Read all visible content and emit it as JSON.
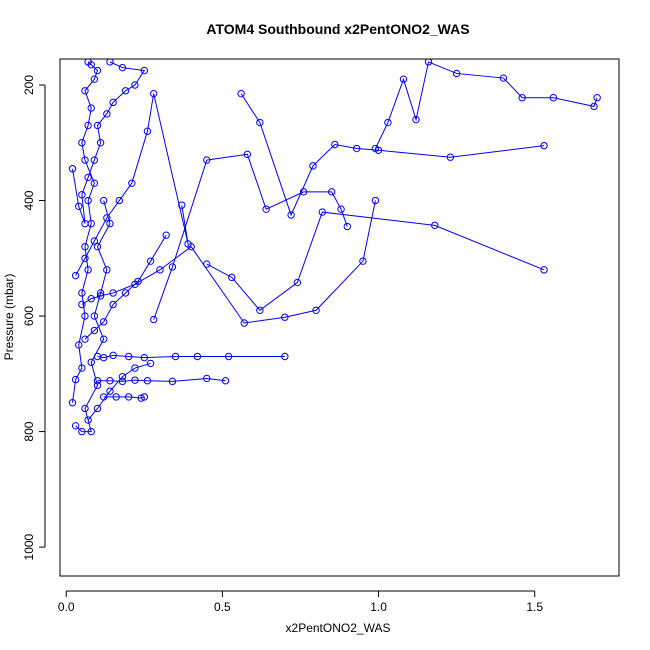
{
  "chart_data": {
    "type": "line",
    "title": "ATOM4 Southbound x2PentONO2_WAS",
    "xlabel": "x2PentONO2_WAS",
    "ylabel": "Pressure (mbar)",
    "xlim": [
      -0.02,
      1.77
    ],
    "ylim": [
      1050,
      155
    ],
    "y_axis_reversed": true,
    "x_ticks": [
      0.0,
      0.5,
      1.0,
      1.5
    ],
    "x_tick_labels": [
      "0.0",
      "0.5",
      "1.0",
      "1.5"
    ],
    "y_ticks": [
      200,
      400,
      600,
      800,
      1000
    ],
    "y_tick_labels": [
      "200",
      "400",
      "600",
      "800",
      "1000"
    ],
    "line_color": "#0000ff",
    "marker": "open-circle",
    "grid": false,
    "legend": "none",
    "series": [
      {
        "x": [
          0.02,
          0.03,
          0.05,
          0.04,
          0.06,
          0.05,
          0.07,
          0.06,
          0.08,
          0.07,
          0.09,
          0.06,
          0.05,
          0.07,
          0.08,
          0.06,
          0.09,
          0.1,
          0.08,
          0.07
        ],
        "y": [
          750,
          710,
          690,
          650,
          600,
          560,
          520,
          480,
          440,
          400,
          370,
          330,
          300,
          270,
          240,
          210,
          190,
          175,
          165,
          160
        ]
      },
      {
        "x": [
          0.03,
          0.05,
          0.08,
          0.06,
          0.1,
          0.08,
          0.12,
          0.09,
          0.11,
          0.13,
          0.1,
          0.14,
          0.12
        ],
        "y": [
          790,
          800,
          800,
          760,
          720,
          680,
          640,
          600,
          560,
          520,
          480,
          440,
          400
        ]
      },
      {
        "x": [
          0.1,
          0.12,
          0.15,
          0.2,
          0.25,
          0.35,
          0.42,
          0.52,
          0.7
        ],
        "y": [
          670,
          672,
          668,
          670,
          672,
          670,
          670,
          670,
          670
        ]
      },
      {
        "x": [
          0.1,
          0.14,
          0.18,
          0.22,
          0.26,
          0.34,
          0.45,
          0.51
        ],
        "y": [
          712,
          712,
          713,
          711,
          712,
          713,
          708,
          712
        ]
      },
      {
        "x": [
          0.12,
          0.16,
          0.2,
          0.24,
          0.25
        ],
        "y": [
          740,
          740,
          740,
          742,
          740
        ]
      },
      {
        "x": [
          0.05,
          0.08,
          0.11,
          0.15,
          0.22,
          0.3,
          0.4,
          0.57,
          0.7,
          0.8,
          0.95,
          0.99
        ],
        "y": [
          580,
          570,
          565,
          560,
          545,
          520,
          480,
          612,
          602,
          590,
          505,
          400
        ]
      },
      {
        "x": [
          0.9,
          0.88,
          0.85,
          0.76,
          0.64,
          0.58,
          0.45,
          0.34,
          0.28
        ],
        "y": [
          445,
          415,
          385,
          385,
          415,
          320,
          330,
          515,
          606
        ]
      },
      {
        "x": [
          1.7,
          1.69,
          1.56,
          1.46,
          1.4,
          1.25,
          1.16,
          1.12,
          1.08,
          1.03,
          0.99
        ],
        "y": [
          222,
          237,
          222,
          222,
          188,
          180,
          160,
          260,
          190,
          265,
          310
        ]
      },
      {
        "x": [
          1.53,
          1.23,
          1.0,
          0.93,
          0.86,
          0.79,
          0.72,
          0.62,
          0.56
        ],
        "y": [
          305,
          325,
          313,
          310,
          303,
          340,
          425,
          265,
          215
        ]
      },
      {
        "x": [
          1.53,
          1.18,
          0.82,
          0.74,
          0.62,
          0.53,
          0.45
        ],
        "y": [
          520,
          443,
          420,
          542,
          590,
          533,
          510
        ]
      },
      {
        "x": [
          0.02,
          0.04,
          0.06,
          0.05,
          0.07,
          0.09,
          0.11,
          0.1,
          0.13,
          0.15,
          0.19,
          0.22,
          0.25,
          0.18,
          0.14
        ],
        "y": [
          345,
          410,
          440,
          390,
          360,
          330,
          300,
          270,
          250,
          230,
          210,
          200,
          175,
          170,
          160
        ]
      },
      {
        "x": [
          0.03,
          0.06,
          0.09,
          0.13,
          0.17,
          0.21,
          0.26,
          0.28,
          0.39,
          0.37
        ],
        "y": [
          530,
          500,
          470,
          430,
          400,
          370,
          280,
          215,
          475,
          408
        ]
      },
      {
        "x": [
          0.06,
          0.09,
          0.12,
          0.15,
          0.19,
          0.23,
          0.27,
          0.32
        ],
        "y": [
          640,
          625,
          610,
          580,
          560,
          540,
          505,
          460
        ]
      },
      {
        "x": [
          0.07,
          0.1,
          0.14,
          0.18,
          0.22,
          0.27
        ],
        "y": [
          780,
          760,
          730,
          705,
          690,
          682
        ]
      }
    ]
  }
}
